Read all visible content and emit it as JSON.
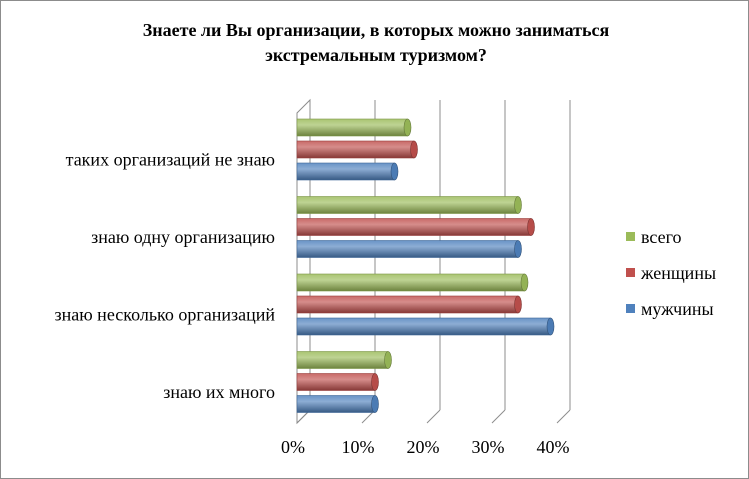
{
  "chart_data": {
    "type": "bar",
    "orientation": "horizontal",
    "title_lines": [
      "Знаете ли Вы организации, в которых можно заниматься",
      "экстремальным туризмом?"
    ],
    "categories": [
      "таких организаций не знаю",
      "знаю одну организацию",
      "знаю несколько организаций",
      "знаю их много"
    ],
    "series": [
      {
        "name": "всего",
        "color": "#9bbb59",
        "values": [
          17,
          34,
          35,
          14
        ]
      },
      {
        "name": "женщины",
        "color": "#c0504d",
        "values": [
          18,
          36,
          34,
          12
        ]
      },
      {
        "name": "мужчины",
        "color": "#4f81bd",
        "values": [
          15,
          34,
          39,
          12
        ]
      }
    ],
    "x_ticks": [
      "0%",
      "10%",
      "20%",
      "30%",
      "40%"
    ],
    "xlim": [
      0,
      40
    ],
    "grid": true,
    "legend": "right"
  }
}
